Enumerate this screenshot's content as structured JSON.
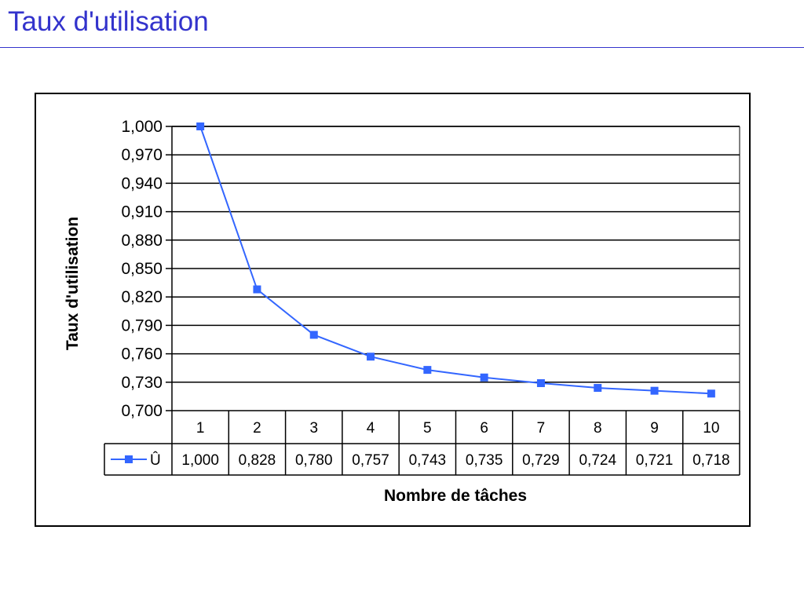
{
  "slide": {
    "title": "Taux d'utilisation"
  },
  "chart_data": {
    "type": "line",
    "categories": [
      "1",
      "2",
      "3",
      "4",
      "5",
      "6",
      "7",
      "8",
      "9",
      "10"
    ],
    "series": [
      {
        "name": "Û",
        "values": [
          1.0,
          0.828,
          0.78,
          0.757,
          0.743,
          0.735,
          0.729,
          0.724,
          0.721,
          0.718
        ],
        "value_labels": [
          "1,000",
          "0,828",
          "0,780",
          "0,757",
          "0,743",
          "0,735",
          "0,729",
          "0,724",
          "0,721",
          "0,718"
        ],
        "color": "#3366ff"
      }
    ],
    "title": "",
    "xlabel": "Nombre de tâches",
    "ylabel": "Taux d'utilisation",
    "ylim": [
      0.7,
      1.0
    ],
    "yticks": [
      "0,700",
      "0,730",
      "0,760",
      "0,790",
      "0,820",
      "0,850",
      "0,880",
      "0,910",
      "0,940",
      "0,970",
      "1,000"
    ],
    "grid": true,
    "legend": "data-table"
  }
}
